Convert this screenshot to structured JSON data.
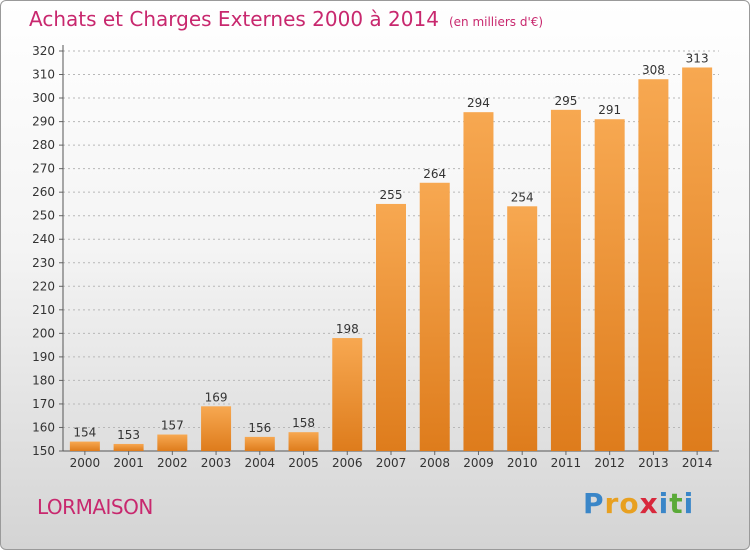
{
  "chart_data": {
    "type": "bar",
    "title": "Achats et Charges Externes 2000 à 2014",
    "subtitle": "(en milliers d'€)",
    "categories": [
      "2000",
      "2001",
      "2002",
      "2003",
      "2004",
      "2005",
      "2006",
      "2007",
      "2008",
      "2009",
      "2010",
      "2011",
      "2012",
      "2013",
      "2014"
    ],
    "values": [
      154,
      153,
      157,
      169,
      156,
      158,
      198,
      255,
      264,
      294,
      254,
      295,
      291,
      308,
      313
    ],
    "ylim": [
      150,
      320
    ],
    "yticks": [
      150,
      160,
      170,
      180,
      190,
      200,
      210,
      220,
      230,
      240,
      250,
      260,
      270,
      280,
      290,
      300,
      310,
      320
    ],
    "grid": true,
    "bar_color": "#f0962e",
    "title_color": "#c8286e"
  },
  "commune": "LORMAISON",
  "logo": {
    "letters": [
      "P",
      "r",
      "o",
      "x",
      "i",
      "t",
      "i"
    ],
    "colors": [
      "#3a86c8",
      "#e8a020",
      "#e8a020",
      "#d8283c",
      "#3a86c8",
      "#5aaa38",
      "#3a86c8"
    ]
  }
}
